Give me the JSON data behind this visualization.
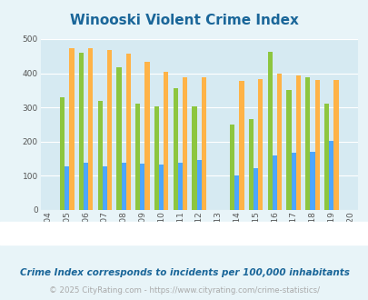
{
  "title": "Winooski Violent Crime Index",
  "years": [
    2004,
    2005,
    2006,
    2007,
    2008,
    2009,
    2010,
    2011,
    2012,
    2013,
    2014,
    2015,
    2016,
    2017,
    2018,
    2019,
    2020
  ],
  "winooski": [
    null,
    330,
    460,
    318,
    418,
    312,
    304,
    357,
    304,
    null,
    250,
    265,
    463,
    351,
    388,
    311,
    null
  ],
  "vermont": [
    null,
    128,
    138,
    128,
    139,
    135,
    132,
    139,
    146,
    null,
    102,
    123,
    160,
    168,
    171,
    203,
    null
  ],
  "national": [
    null,
    472,
    474,
    468,
    456,
    432,
    405,
    389,
    389,
    null,
    377,
    383,
    398,
    394,
    381,
    380,
    null
  ],
  "winooski_color": "#8dc63f",
  "vermont_color": "#4da6ff",
  "national_color": "#ffb347",
  "bg_color": "#e8f4f8",
  "plot_bg": "#d6eaf2",
  "title_color": "#1a6699",
  "subtitle": "Crime Index corresponds to incidents per 100,000 inhabitants",
  "footer": "© 2025 CityRating.com - https://www.cityrating.com/crime-statistics/",
  "ylim": [
    0,
    500
  ],
  "yticks": [
    0,
    100,
    200,
    300,
    400,
    500
  ],
  "bar_width": 0.25
}
